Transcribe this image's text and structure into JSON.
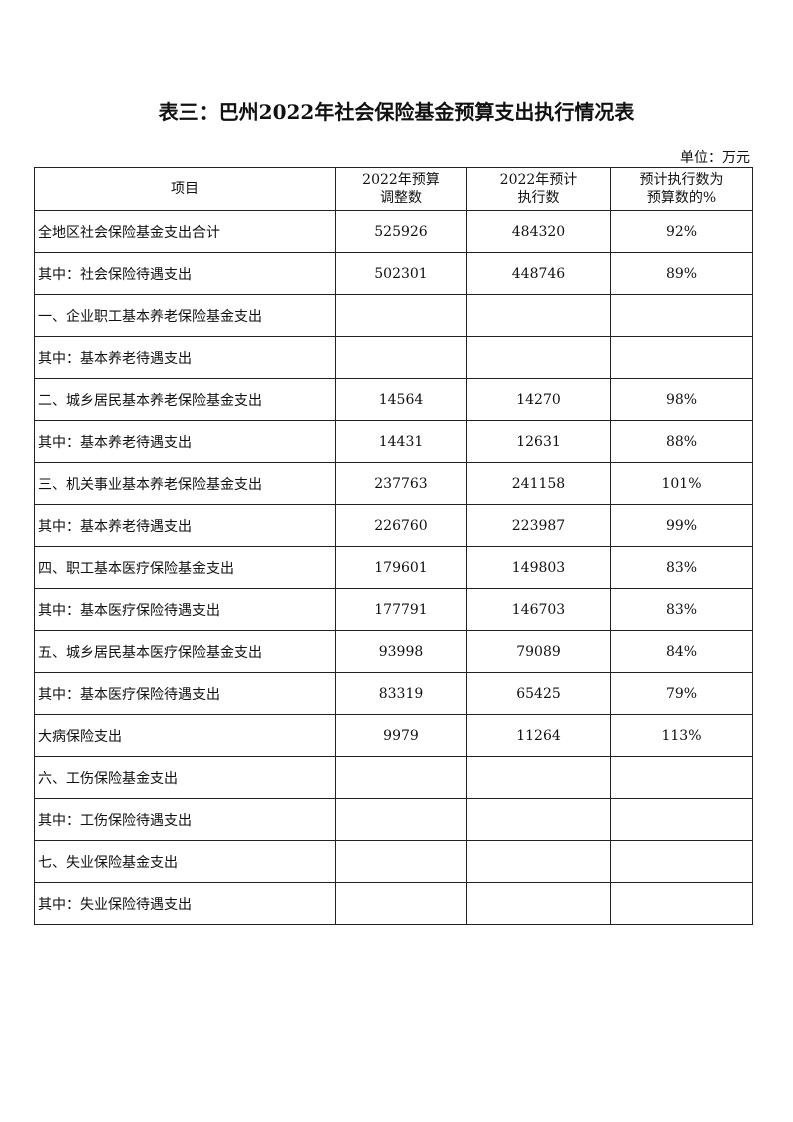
{
  "title": "表三：巴州2022年社会保险基金预算支出执行情况表",
  "unit": "单位：万元",
  "headers": [
    {
      "line1": "项目",
      "line2": ""
    },
    {
      "line1": "2022年预算",
      "line2": "调整数"
    },
    {
      "line1": "2022年预计",
      "line2": "执行数"
    },
    {
      "line1": "预计执行数为",
      "line2": "预算数的%"
    }
  ],
  "rows": [
    {
      "item": "全地区社会保险基金支出合计",
      "budget": "525926",
      "estimate": "484320",
      "pct": "92%"
    },
    {
      "item": "其中：社会保险待遇支出",
      "budget": "502301",
      "estimate": "448746",
      "pct": "89%"
    },
    {
      "item": "一、企业职工基本养老保险基金支出",
      "budget": "",
      "estimate": "",
      "pct": ""
    },
    {
      "item": "其中：基本养老待遇支出",
      "budget": "",
      "estimate": "",
      "pct": ""
    },
    {
      "item": "二、城乡居民基本养老保险基金支出",
      "budget": "14564",
      "estimate": "14270",
      "pct": "98%"
    },
    {
      "item": "其中：基本养老待遇支出",
      "budget": "14431",
      "estimate": "12631",
      "pct": "88%"
    },
    {
      "item": "三、机关事业基本养老保险基金支出",
      "budget": "237763",
      "estimate": "241158",
      "pct": "101%"
    },
    {
      "item": "其中：基本养老待遇支出",
      "budget": "226760",
      "estimate": "223987",
      "pct": "99%"
    },
    {
      "item": "四、职工基本医疗保险基金支出",
      "budget": "179601",
      "estimate": "149803",
      "pct": "83%"
    },
    {
      "item": "其中：基本医疗保险待遇支出",
      "budget": "177791",
      "estimate": "146703",
      "pct": "83%"
    },
    {
      "item": "五、城乡居民基本医疗保险基金支出",
      "budget": "93998",
      "estimate": "79089",
      "pct": "84%"
    },
    {
      "item": "其中：基本医疗保险待遇支出",
      "budget": "83319",
      "estimate": "65425",
      "pct": "79%"
    },
    {
      "item": "大病保险支出",
      "budget": "9979",
      "estimate": "11264",
      "pct": "113%"
    },
    {
      "item": "六、工伤保险基金支出",
      "budget": "",
      "estimate": "",
      "pct": ""
    },
    {
      "item": "其中：工伤保险待遇支出",
      "budget": "",
      "estimate": "",
      "pct": ""
    },
    {
      "item": "七、失业保险基金支出",
      "budget": "",
      "estimate": "",
      "pct": ""
    },
    {
      "item": "其中：失业保险待遇支出",
      "budget": "",
      "estimate": "",
      "pct": ""
    }
  ]
}
